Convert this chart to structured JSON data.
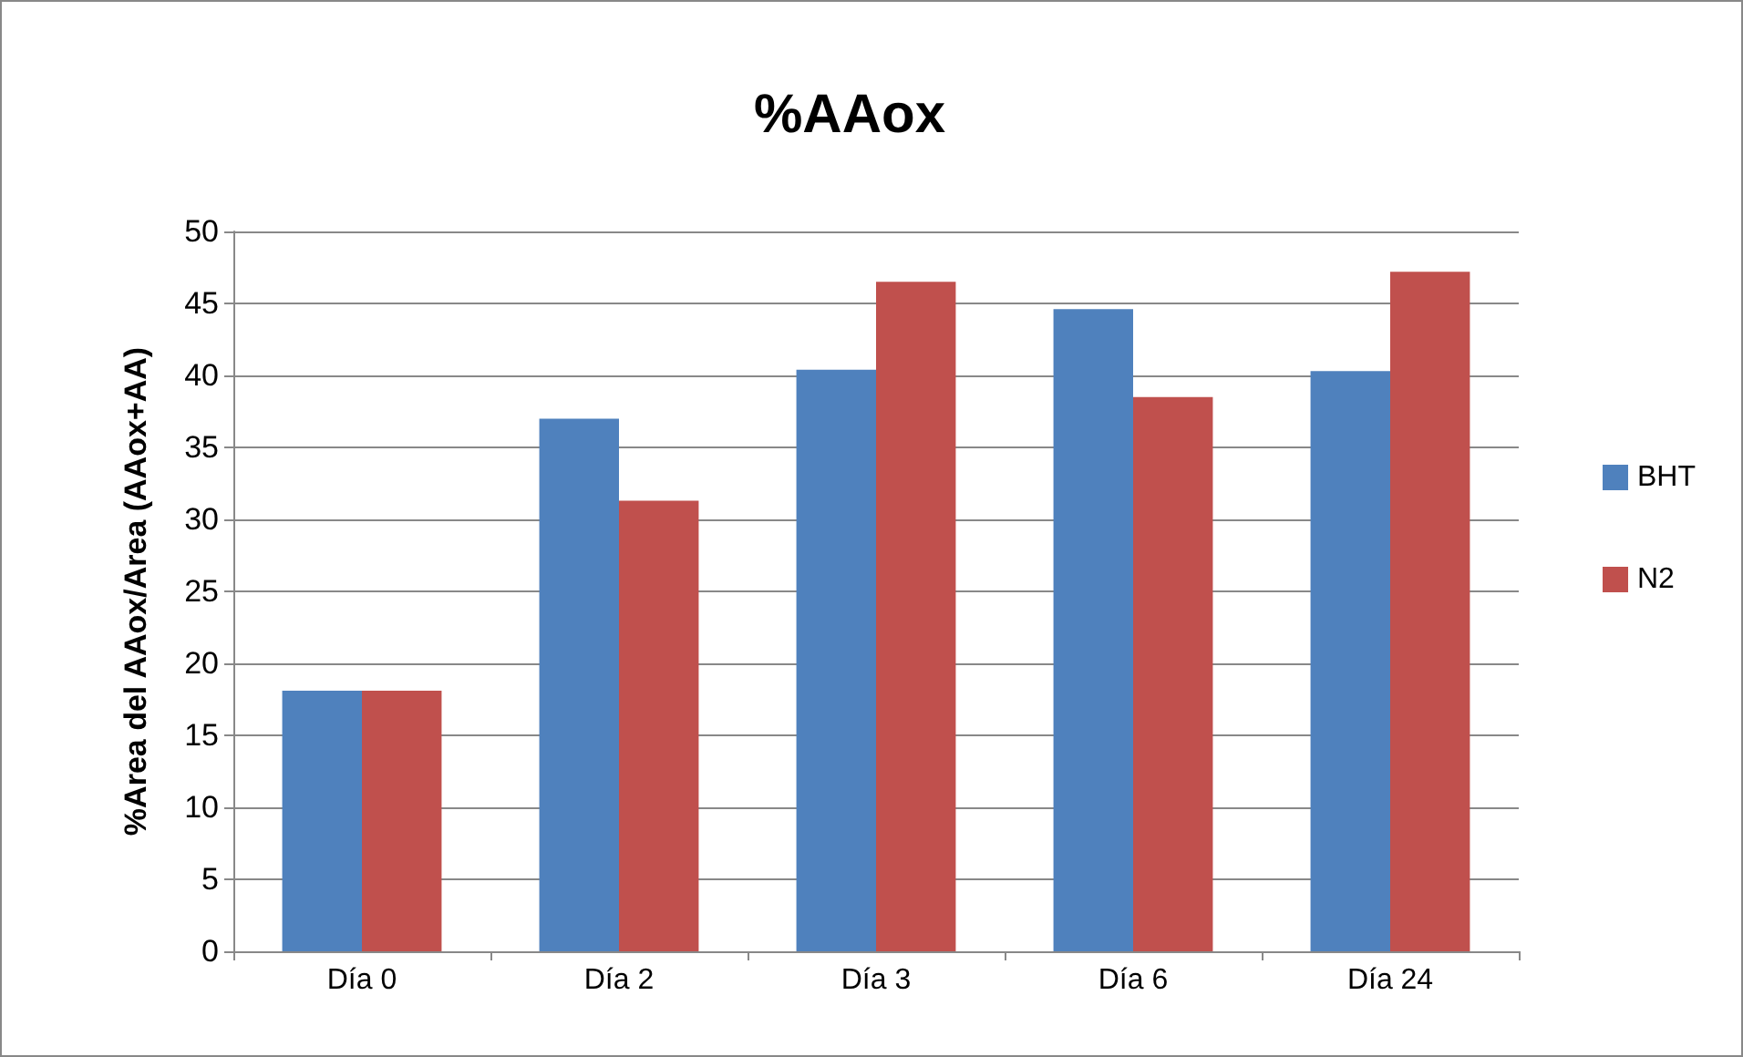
{
  "chart_data": {
    "type": "bar",
    "title": "%AAox",
    "ylabel": "%Area del AAox/Area (AAox+AA)",
    "categories": [
      "Día 0",
      "Día 2",
      "Día 3",
      "Día 6",
      "Día 24"
    ],
    "series": [
      {
        "name": "BHT",
        "color": "#4f81bd",
        "values": [
          18.1,
          37.0,
          40.4,
          44.6,
          40.3
        ]
      },
      {
        "name": "N2",
        "color": "#c0504d",
        "values": [
          18.1,
          31.3,
          46.5,
          38.5,
          47.2
        ]
      }
    ],
    "ylim": [
      0,
      50
    ],
    "yticks": [
      0,
      5,
      10,
      15,
      20,
      25,
      30,
      35,
      40,
      45,
      50
    ],
    "grid": "y",
    "legend": "right"
  }
}
